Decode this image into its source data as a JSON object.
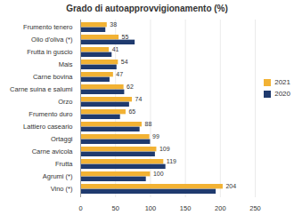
{
  "chart_data": {
    "type": "bar",
    "orientation": "horizontal",
    "title": "Grado di autoapprovvigionamento (%)",
    "categories": [
      "Frumento tenero",
      "Olio d'oliva (*)",
      "Frutta in guscio",
      "Mais",
      "Carne bovina",
      "Carne suina e salumi",
      "Orzo",
      "Frumento duro",
      "Lattiero caseario",
      "Ortaggi",
      "Carne avicola",
      "Frutta",
      "Agrumi (*)",
      "Vino (*)"
    ],
    "series": [
      {
        "name": "2021",
        "color": "#f2b234",
        "values": [
          38,
          55,
          41,
          54,
          47,
          62,
          74,
          65,
          88,
          99,
          109,
          119,
          100,
          204
        ],
        "data_labels": true
      },
      {
        "name": "2020",
        "color": "#1f3a6e",
        "values": [
          36,
          78,
          45,
          52,
          42,
          63,
          70,
          57,
          85,
          100,
          107,
          122,
          94,
          194
        ]
      }
    ],
    "xlim": [
      0,
      250
    ],
    "xticks": [
      0,
      50,
      100,
      150,
      200,
      250
    ],
    "grid": true,
    "legend": "right"
  }
}
